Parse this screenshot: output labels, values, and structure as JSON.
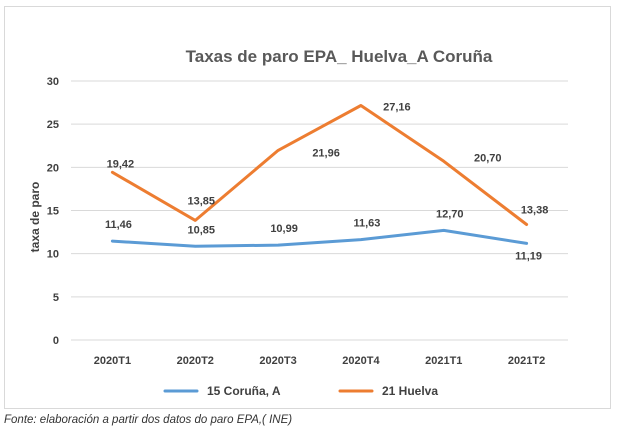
{
  "chart_data": {
    "type": "line",
    "title": "Taxas de paro EPA_ Huelva_A Coruña",
    "xlabel": "",
    "ylabel": "taxa de paro",
    "categories": [
      "2020T1",
      "2020T2",
      "2020T3",
      "2020T4",
      "2021T1",
      "2021T2"
    ],
    "ylim": [
      0,
      30
    ],
    "yticks": [
      0,
      5,
      10,
      15,
      20,
      25,
      30
    ],
    "grid": true,
    "legend_position": "bottom",
    "series": [
      {
        "name": "15 Coruña, A",
        "color": "#5b9bd5",
        "values": [
          11.46,
          10.85,
          10.99,
          11.63,
          12.7,
          11.19
        ],
        "labels": [
          "11,46",
          "10,85",
          "10,99",
          "11,63",
          "12,70",
          "11,19"
        ]
      },
      {
        "name": "21 Huelva",
        "color": "#ed7d31",
        "values": [
          19.42,
          13.85,
          21.96,
          27.16,
          20.7,
          13.38
        ],
        "labels": [
          "19,42",
          "13,85",
          "21,96",
          "27,16",
          "20,70",
          "13,38"
        ]
      }
    ]
  },
  "caption": "Fonte: elaboración  a partir dos datos do paro EPA,( INE)"
}
